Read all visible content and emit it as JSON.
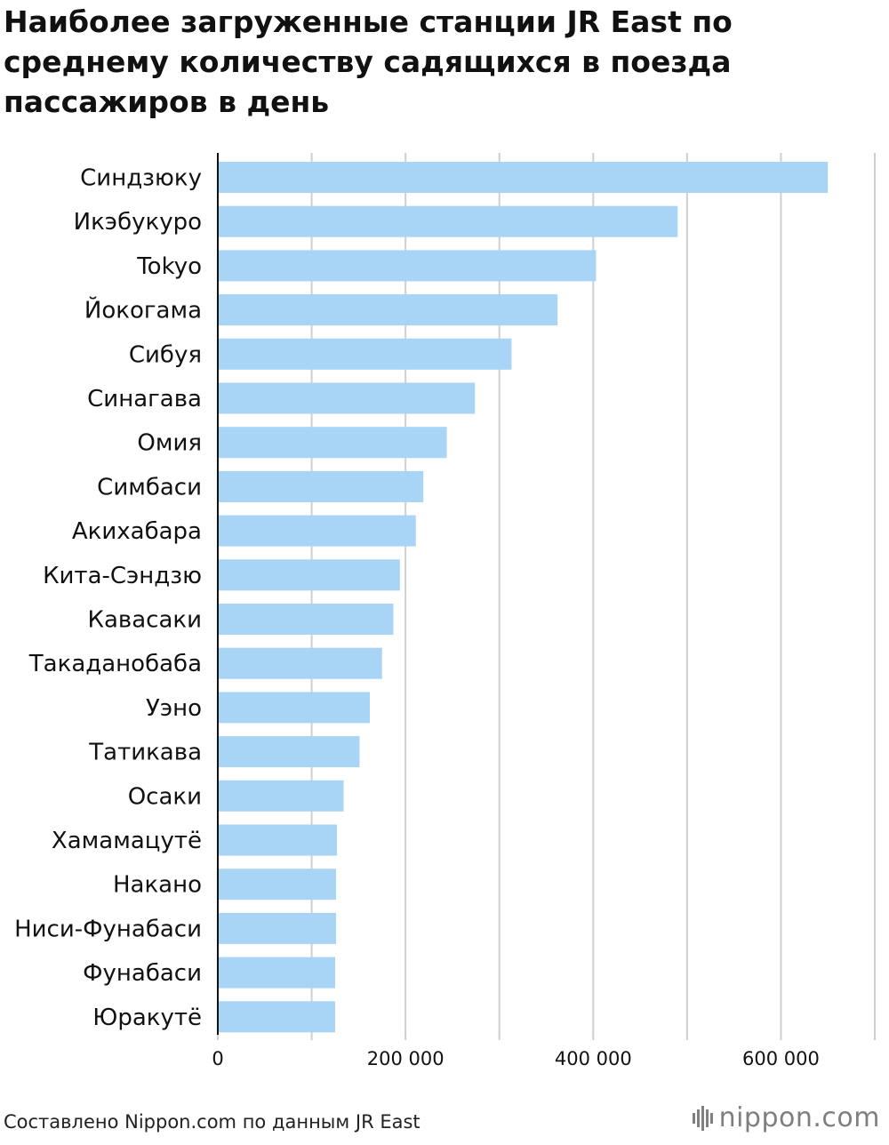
{
  "title": "Наиболее загруженные станции JR East по среднему количеству садящихся в поезда пассажиров в день",
  "footer": {
    "source": "Составлено Nippon.com по данным JR East",
    "logo": "nippon.com",
    "logo_icon": "nippon-logo-icon"
  },
  "colors": {
    "bar": "#a8d4f5",
    "grid": "#cfcfcf",
    "axis": "#111111",
    "logo": "#7f7f7f"
  },
  "chart_data": {
    "type": "bar",
    "orientation": "horizontal",
    "title": "Наиболее загруженные станции JR East по среднему количеству садящихся в поезда пассажиров в день",
    "categories": [
      "Синдзюку",
      "Икэбукуро",
      "Tokyo",
      "Йокогама",
      "Сибуя",
      "Синагава",
      "Омия",
      "Симбаси",
      "Акихабара",
      "Кита-Сэндзю",
      "Кавасаки",
      "Такаданобаба",
      "Уэно",
      "Татикава",
      "Осаки",
      "Хамамацутё",
      "Накано",
      "Ниси-Фунабаси",
      "Фунабаси",
      "Юракутё"
    ],
    "values": [
      650000,
      490000,
      403000,
      362000,
      313000,
      274000,
      244000,
      219000,
      211000,
      194000,
      187000,
      175000,
      162000,
      151000,
      134000,
      127000,
      126000,
      126000,
      125000,
      125000
    ],
    "xlim": [
      0,
      700000
    ],
    "xticks": [
      0,
      200000,
      400000,
      600000
    ],
    "xtick_labels": [
      "0",
      "200 000",
      "400 000",
      "600 000"
    ],
    "gridlines_every": 100000,
    "grid": true,
    "legend": "none",
    "xlabel": "",
    "ylabel": ""
  }
}
